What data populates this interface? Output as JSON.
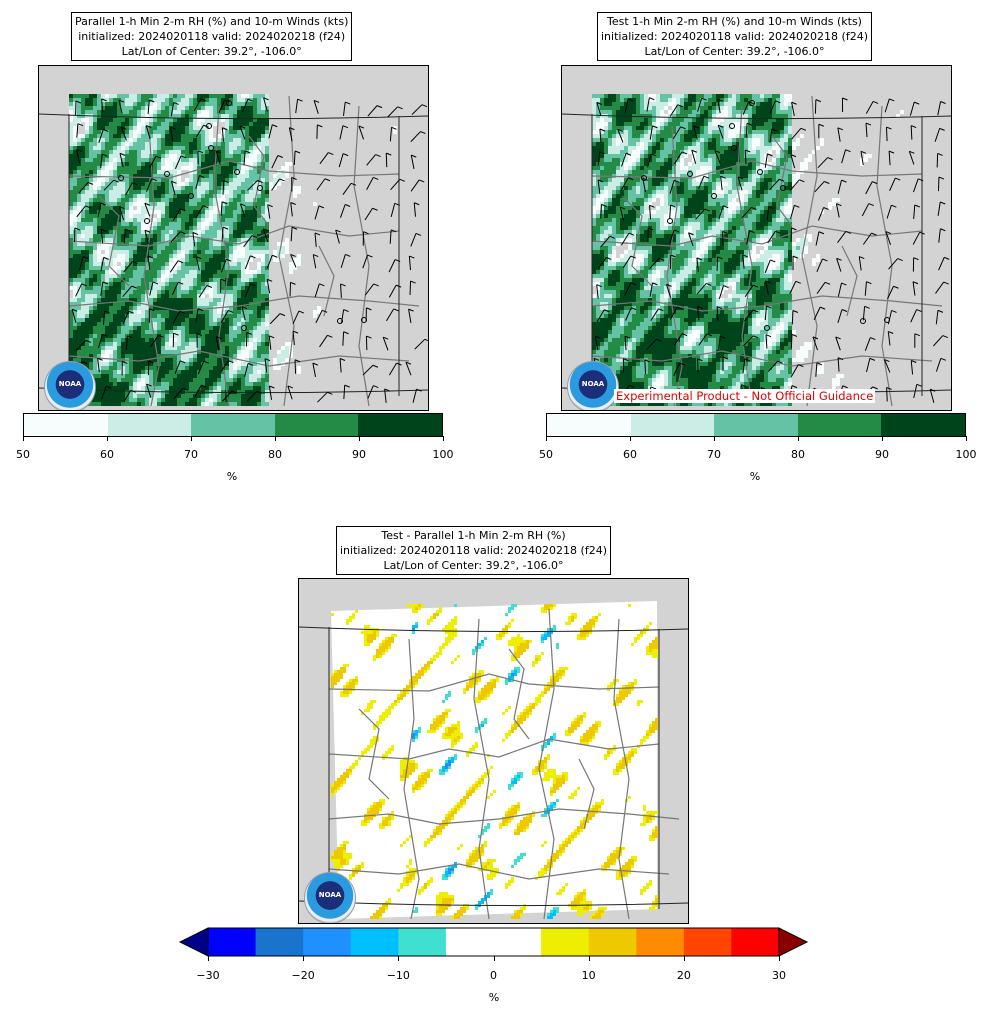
{
  "panels": [
    {
      "id": "parallel",
      "title_lines": [
        "Parallel 1-h Min 2-m RH (%) and 10-m Winds (kts)",
        "initialized: 2024020118 valid: 2024020218 (f24)",
        "Lat/Lon of Center: 39.2°, -106.0°"
      ],
      "colorbar": {
        "ticks": [
          "50",
          "60",
          "70",
          "80",
          "90",
          "100"
        ],
        "unit": "%",
        "colors": [
          "#f7fcfd",
          "#ccece6",
          "#66c2a4",
          "#238b45",
          "#00441b"
        ]
      },
      "logo_text": "NOAA"
    },
    {
      "id": "test",
      "title_lines": [
        "Test 1-h Min 2-m RH (%) and 10-m Winds (kts)",
        "initialized: 2024020118 valid: 2024020218 (f24)",
        "Lat/Lon of Center: 39.2°, -106.0°"
      ],
      "colorbar": {
        "ticks": [
          "50",
          "60",
          "70",
          "80",
          "90",
          "100"
        ],
        "unit": "%",
        "colors": [
          "#f7fcfd",
          "#ccece6",
          "#66c2a4",
          "#238b45",
          "#00441b"
        ]
      },
      "experimental_label": "Experimental Product - Not Official Guidance",
      "logo_text": "NOAA"
    },
    {
      "id": "difference",
      "title_lines": [
        "Test - Parallel 1-h Min 2-m RH (%)",
        "initialized: 2024020118 valid: 2024020218 (f24)",
        "Lat/Lon of Center: 39.2°, -106.0°"
      ],
      "colorbar": {
        "ticks": [
          "−30",
          "−20",
          "−10",
          "0",
          "10",
          "20",
          "30"
        ],
        "unit": "%",
        "under_color": "#00008b",
        "over_color": "#8b0000",
        "colors": [
          "#0000ff",
          "#1874cd",
          "#1e90ff",
          "#00bfff",
          "#40e0d0",
          "#ffffff",
          "#ffffff",
          "#eeee00",
          "#eec900",
          "#ff8c00",
          "#ff4500",
          "#ff0000"
        ]
      },
      "logo_text": "NOAA"
    }
  ]
}
